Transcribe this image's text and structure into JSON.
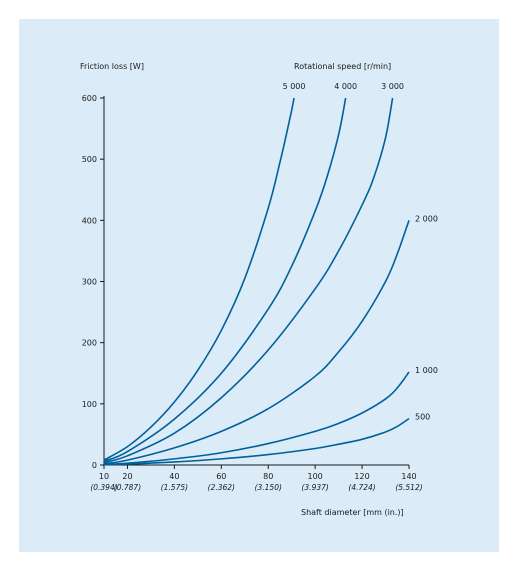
{
  "chart_data": {
    "type": "line",
    "ylabel": "Friction loss [W]",
    "xlabel": "Shaft diameter [mm (in.)]",
    "legend_title": "Rotational speed [r/min]",
    "xlim": [
      10,
      140
    ],
    "ylim": [
      0,
      600
    ],
    "x_ticks": [
      10,
      20,
      40,
      60,
      80,
      100,
      120,
      140
    ],
    "x_tick_labels": [
      "10",
      "20",
      "40",
      "60",
      "80",
      "100",
      "120",
      "140"
    ],
    "x_tick_sublabels": [
      "(0.394)",
      "(0.787)",
      "(1.575)",
      "(2.362)",
      "(3.150)",
      "(3.937)",
      "(4.724)",
      "(5.512)"
    ],
    "y_ticks": [
      0,
      100,
      200,
      300,
      400,
      500,
      600
    ],
    "y_tick_labels": [
      "0",
      "100",
      "200",
      "300",
      "400",
      "500",
      "600"
    ],
    "grid": false,
    "line_color": "#00609c",
    "series": [
      {
        "name": "5 000",
        "x": [
          10,
          20,
          30,
          40,
          50,
          60,
          70,
          80,
          85,
          88,
          90,
          91
        ],
        "y": [
          8,
          30,
          62,
          103,
          155,
          220,
          305,
          420,
          495,
          545,
          580,
          600
        ]
      },
      {
        "name": "4 000",
        "x": [
          10,
          20,
          40,
          60,
          80,
          90,
          100,
          105,
          110,
          113
        ],
        "y": [
          6,
          22,
          75,
          150,
          255,
          325,
          415,
          470,
          540,
          600
        ]
      },
      {
        "name": "3 000",
        "x": [
          10,
          20,
          40,
          60,
          80,
          100,
          110,
          120,
          125,
          130,
          133
        ],
        "y": [
          4,
          15,
          52,
          110,
          188,
          288,
          350,
          425,
          470,
          535,
          600
        ]
      },
      {
        "name": "2 000",
        "x": [
          10,
          20,
          40,
          60,
          80,
          100,
          110,
          120,
          130,
          135,
          140
        ],
        "y": [
          2,
          8,
          28,
          55,
          92,
          145,
          185,
          235,
          300,
          345,
          400
        ]
      },
      {
        "name": "1 000",
        "x": [
          10,
          20,
          40,
          60,
          80,
          100,
          110,
          120,
          130,
          135,
          140
        ],
        "y": [
          1,
          3,
          10,
          20,
          35,
          55,
          68,
          85,
          108,
          126,
          152
        ]
      },
      {
        "name": "500",
        "x": [
          10,
          20,
          40,
          60,
          80,
          100,
          110,
          120,
          130,
          135,
          140
        ],
        "y": [
          0.5,
          1.5,
          5,
          10,
          17,
          27,
          34,
          42,
          54,
          63,
          76
        ]
      }
    ]
  }
}
